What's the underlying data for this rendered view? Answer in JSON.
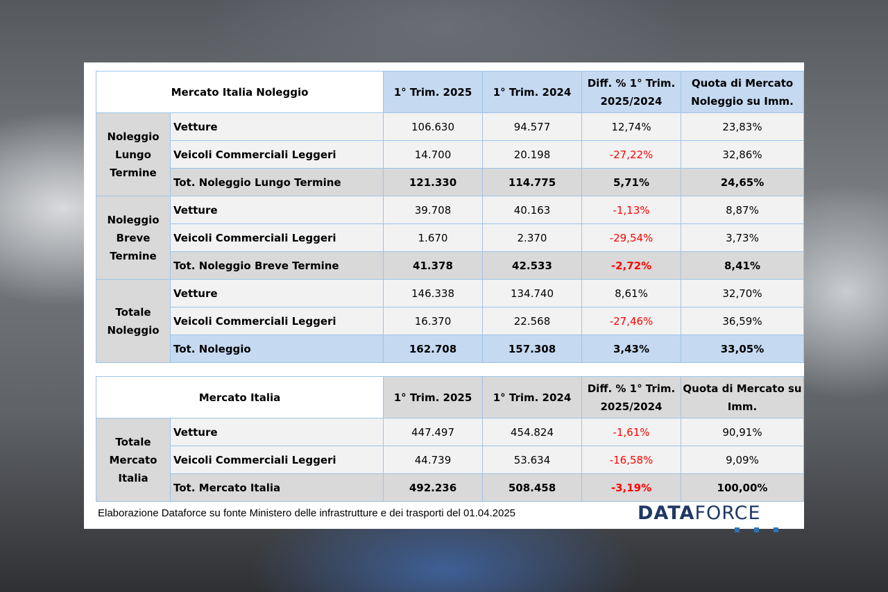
{
  "table1": {
    "title": "Mercato Italia Noleggio",
    "headers": [
      "1° Trim. 2025",
      "1° Trim. 2024",
      "Diff. % 1° Trim. 2025/2024",
      "Quota di Mercato Noleggio su Imm."
    ],
    "groups": [
      {
        "label": "Noleggio Lungo Termine",
        "rows": [
          {
            "label": "Vetture",
            "v2025": "106.630",
            "v2024": "94.577",
            "diff": "12,74%",
            "quota": "23,83%"
          },
          {
            "label": "Veicoli Commerciali Leggeri",
            "v2025": "14.700",
            "v2024": "20.198",
            "diff": "-27,22%",
            "quota": "32,86%"
          },
          {
            "label": "Tot. Noleggio Lungo Termine",
            "v2025": "121.330",
            "v2024": "114.775",
            "diff": "5,71%",
            "quota": "24,65%"
          }
        ]
      },
      {
        "label": "Noleggio Breve Termine",
        "rows": [
          {
            "label": "Vetture",
            "v2025": "39.708",
            "v2024": "40.163",
            "diff": "-1,13%",
            "quota": "8,87%"
          },
          {
            "label": "Veicoli Commerciali Leggeri",
            "v2025": "1.670",
            "v2024": "2.370",
            "diff": "-29,54%",
            "quota": "3,73%"
          },
          {
            "label": "Tot. Noleggio Breve Termine",
            "v2025": "41.378",
            "v2024": "42.533",
            "diff": "-2,72%",
            "quota": "8,41%"
          }
        ]
      },
      {
        "label": "Totale Noleggio",
        "rows": [
          {
            "label": "Vetture",
            "v2025": "146.338",
            "v2024": "134.740",
            "diff": "8,61%",
            "quota": "32,70%"
          },
          {
            "label": "Veicoli Commerciali Leggeri",
            "v2025": "16.370",
            "v2024": "22.568",
            "diff": "-27,46%",
            "quota": "36,59%"
          },
          {
            "label": "Tot. Noleggio",
            "v2025": "162.708",
            "v2024": "157.308",
            "diff": "3,43%",
            "quota": "33,05%"
          }
        ]
      }
    ]
  },
  "table2": {
    "title": "Mercato Italia",
    "headers": [
      "1° Trim. 2025",
      "1° Trim. 2024",
      "Diff. % 1° Trim. 2025/2024",
      "Quota di Mercato su Imm."
    ],
    "groups": [
      {
        "label": "Totale Mercato Italia",
        "rows": [
          {
            "label": "Vetture",
            "v2025": "447.497",
            "v2024": "454.824",
            "diff": "-1,61%",
            "quota": "90,91%"
          },
          {
            "label": "Veicoli Commerciali Leggeri",
            "v2025": "44.739",
            "v2024": "53.634",
            "diff": "-16,58%",
            "quota": "9,09%"
          },
          {
            "label": "Tot. Mercato Italia",
            "v2025": "492.236",
            "v2024": "508.458",
            "diff": "-3,19%",
            "quota": "100,00%"
          }
        ]
      }
    ]
  },
  "footer": {
    "source": "Elaborazione Dataforce su fonte Ministero delle infrastrutture e dei trasporti del 01.04.2025",
    "logo_text": "DATAFORCE"
  },
  "colors": {
    "header_blue": "#c5d9f1",
    "gray": "#d9d9d9",
    "negative": "#ff0000"
  }
}
